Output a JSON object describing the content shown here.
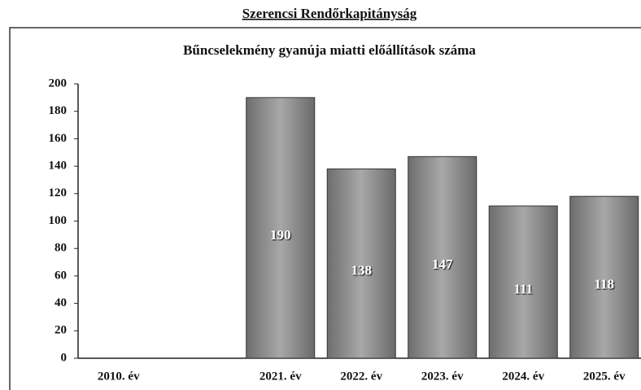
{
  "header": "Szerencsi Rendőrkapitányság",
  "chart_data": {
    "type": "bar",
    "title": "Bűncselekmény gyanúja miatti előállítások száma",
    "categories": [
      "2010. év",
      null,
      "2021. év",
      "2022. év",
      "2023. év",
      "2024. év",
      "2025. év"
    ],
    "values": [
      0,
      null,
      190,
      138,
      147,
      111,
      118
    ],
    "color": "#8c8c8c",
    "ylim": [
      0,
      200
    ],
    "yticks": [
      0,
      20,
      40,
      60,
      80,
      100,
      120,
      140,
      160,
      180,
      200
    ],
    "grid": false
  }
}
